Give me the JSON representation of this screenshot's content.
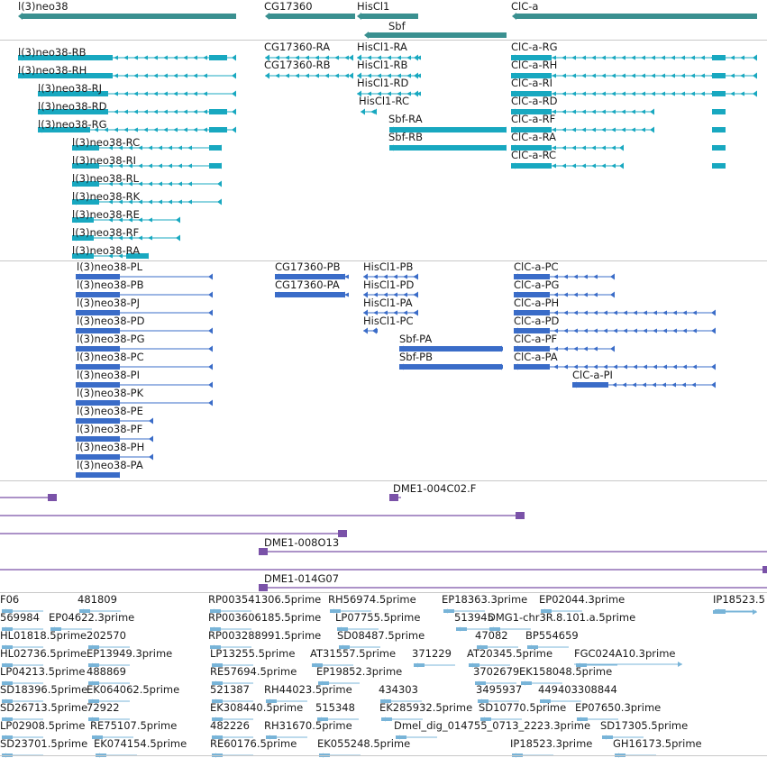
{
  "colors": {
    "gene": "#3a9090",
    "mrna": "#18a8c0",
    "cds": "#3a6cc8",
    "clone": "#7a52a8",
    "est": "#78b4d8",
    "separator": "#c8c8c8"
  },
  "gene_track": {
    "features": [
      {
        "label": "l(3)neo38"
      },
      {
        "label": "CG17360"
      },
      {
        "label": "HisCl1"
      },
      {
        "label": "Sbf"
      },
      {
        "label": "ClC-a"
      }
    ]
  },
  "mrna_track": {
    "features": [
      {
        "label": "l(3)neo38-RB"
      },
      {
        "label": "l(3)neo38-RH"
      },
      {
        "label": "l(3)neo38-RJ"
      },
      {
        "label": "l(3)neo38-RD"
      },
      {
        "label": "l(3)neo38-RG"
      },
      {
        "label": "l(3)neo38-RC"
      },
      {
        "label": "l(3)neo38-RI"
      },
      {
        "label": "l(3)neo38-RL"
      },
      {
        "label": "l(3)neo38-RK"
      },
      {
        "label": "l(3)neo38-RE"
      },
      {
        "label": "l(3)neo38-RF"
      },
      {
        "label": "l(3)neo38-RA"
      },
      {
        "label": "CG17360-RA"
      },
      {
        "label": "CG17360-RB"
      },
      {
        "label": "HisCl1-RA"
      },
      {
        "label": "HisCl1-RB"
      },
      {
        "label": "HisCl1-RD"
      },
      {
        "label": "HisCl1-RC"
      },
      {
        "label": "Sbf-RA"
      },
      {
        "label": "Sbf-RB"
      },
      {
        "label": "ClC-a-RG"
      },
      {
        "label": "ClC-a-RH"
      },
      {
        "label": "ClC-a-RI"
      },
      {
        "label": "ClC-a-RD"
      },
      {
        "label": "ClC-a-RF"
      },
      {
        "label": "ClC-a-RA"
      },
      {
        "label": "ClC-a-RC"
      }
    ]
  },
  "cds_track": {
    "features": [
      {
        "label": "l(3)neo38-PL"
      },
      {
        "label": "l(3)neo38-PB"
      },
      {
        "label": "l(3)neo38-PJ"
      },
      {
        "label": "l(3)neo38-PD"
      },
      {
        "label": "l(3)neo38-PG"
      },
      {
        "label": "l(3)neo38-PC"
      },
      {
        "label": "l(3)neo38-PI"
      },
      {
        "label": "l(3)neo38-PK"
      },
      {
        "label": "l(3)neo38-PE"
      },
      {
        "label": "l(3)neo38-PF"
      },
      {
        "label": "l(3)neo38-PH"
      },
      {
        "label": "l(3)neo38-PA"
      },
      {
        "label": "CG17360-PB"
      },
      {
        "label": "CG17360-PA"
      },
      {
        "label": "HisCl1-PB"
      },
      {
        "label": "HisCl1-PD"
      },
      {
        "label": "HisCl1-PA"
      },
      {
        "label": "HisCl1-PC"
      },
      {
        "label": "Sbf-PA"
      },
      {
        "label": "Sbf-PB"
      },
      {
        "label": "ClC-a-PC"
      },
      {
        "label": "ClC-a-PG"
      },
      {
        "label": "ClC-a-PH"
      },
      {
        "label": "ClC-a-PD"
      },
      {
        "label": "ClC-a-PF"
      },
      {
        "label": "ClC-a-PA"
      },
      {
        "label": "ClC-a-PI"
      }
    ]
  },
  "clone_track": {
    "features": [
      {
        "label": ""
      },
      {
        "label": "DME1-004C02.F"
      },
      {
        "label": ""
      },
      {
        "label": ""
      },
      {
        "label": "DME1-008O13"
      },
      {
        "label": ""
      },
      {
        "label": "DME1-014G07"
      }
    ]
  },
  "est_track": {
    "features": [
      {
        "label": "F06"
      },
      {
        "label": "481809"
      },
      {
        "label": "RP003541306.5prime"
      },
      {
        "label": "RH56974.5prime"
      },
      {
        "label": "EP18363.3prime"
      },
      {
        "label": "EP02044.3prime"
      },
      {
        "label": "IP18523.5"
      },
      {
        "label": "569984"
      },
      {
        "label": "EP04622.3prime"
      },
      {
        "label": "RP003606185.5prime"
      },
      {
        "label": "LP07755.5prime"
      },
      {
        "label": "513945"
      },
      {
        "label": "DMG1-chr3R.8.101.a.5prime"
      },
      {
        "label": "HL01818.5prime"
      },
      {
        "label": "202570"
      },
      {
        "label": "RP003288991.5prime"
      },
      {
        "label": "SD08487.5prime"
      },
      {
        "label": "47082"
      },
      {
        "label": "BP554659"
      },
      {
        "label": "HL02736.5prime"
      },
      {
        "label": "EP13949.3prime"
      },
      {
        "label": "LP13255.5prime"
      },
      {
        "label": "AT31557.5prime"
      },
      {
        "label": "371229"
      },
      {
        "label": "AT20345.5prime"
      },
      {
        "label": "FGC024A10.3prime"
      },
      {
        "label": "LP04213.5prime"
      },
      {
        "label": "488869"
      },
      {
        "label": "RE57694.5prime"
      },
      {
        "label": "EP19852.3prime"
      },
      {
        "label": "3702679"
      },
      {
        "label": "EK158048.5prime"
      },
      {
        "label": "SD18396.5prime"
      },
      {
        "label": "EK064062.5prime"
      },
      {
        "label": "521387"
      },
      {
        "label": "RH44023.5prime"
      },
      {
        "label": "434303"
      },
      {
        "label": "3495937"
      },
      {
        "label": "449403308844"
      },
      {
        "label": "SD26713.5prime"
      },
      {
        "label": "72922"
      },
      {
        "label": "EK308440.5prime"
      },
      {
        "label": "515348"
      },
      {
        "label": "EK285932.5prime"
      },
      {
        "label": "SD10770.5prime"
      },
      {
        "label": "EP07650.3prime"
      },
      {
        "label": "LP02908.5prime"
      },
      {
        "label": "RE75107.5prime"
      },
      {
        "label": "482226"
      },
      {
        "label": "RH31670.5prime"
      },
      {
        "label": "Dmel_dig_014755_0713_2223.3prime"
      },
      {
        "label": "SD17305.5prime"
      },
      {
        "label": "SD23701.5prime"
      },
      {
        "label": "EK074154.5prime"
      },
      {
        "label": "RE60176.5prime"
      },
      {
        "label": "EK055248.5prime"
      },
      {
        "label": "IP18523.3prime"
      },
      {
        "label": "GH16173.5prime"
      }
    ]
  }
}
